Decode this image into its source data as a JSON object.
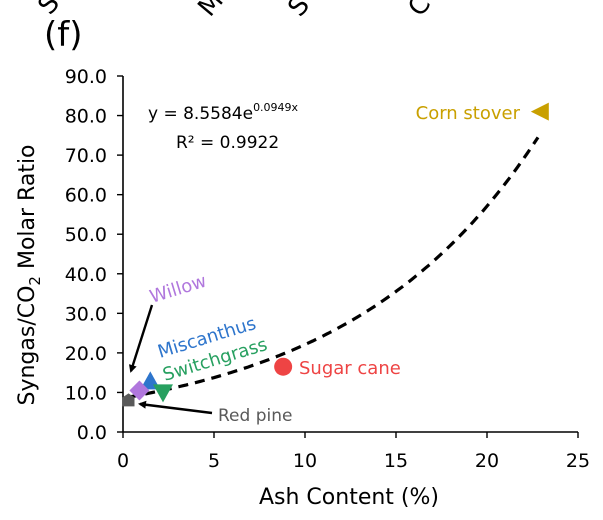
{
  "panel_label": "(f)",
  "top_cut_labels": [
    "S",
    "M",
    "S",
    "C"
  ],
  "equation": {
    "prefix": "y = 8.5584e",
    "exponent": "0.0949x",
    "r2": "R² = 0.9922"
  },
  "colors": {
    "curve": "#000000",
    "corn_stover": "#C9A000",
    "sugar_cane": "#EE4444",
    "miscanthus": "#2E75CC",
    "switchgrass": "#27A060",
    "willow": "#B077DD",
    "red_pine": "#595959"
  },
  "chart_data": {
    "type": "scatter",
    "xlabel": "Ash Content (%)",
    "ylabel": {
      "before": "Syngas/CO",
      "sub": "2",
      "after": " Molar Ratio"
    },
    "xlim": [
      0,
      25
    ],
    "ylim": [
      0,
      90
    ],
    "x_ticks": [
      "0",
      "5",
      "10",
      "15",
      "20",
      "25"
    ],
    "y_ticks": [
      "0.0",
      "10.0",
      "20.0",
      "30.0",
      "40.0",
      "50.0",
      "60.0",
      "70.0",
      "80.0",
      "90.0"
    ],
    "trendline": {
      "a": 8.5584,
      "b": 0.0949,
      "x_range": [
        0.3,
        22.8
      ],
      "style": "dashed"
    },
    "points": [
      {
        "name": "Corn stover",
        "x": 22.9,
        "y": 81.0,
        "marker": "triangle-left",
        "color_key": "corn_stover"
      },
      {
        "name": "Sugar cane",
        "x": 8.8,
        "y": 16.5,
        "marker": "circle",
        "color_key": "sugar_cane"
      },
      {
        "name": "Miscanthus",
        "x": 1.5,
        "y": 12.8,
        "marker": "triangle-up",
        "color_key": "miscanthus"
      },
      {
        "name": "Switchgrass",
        "x": 2.2,
        "y": 10.0,
        "marker": "triangle-down",
        "color_key": "switchgrass"
      },
      {
        "name": "Willow",
        "x": 0.9,
        "y": 10.5,
        "marker": "diamond",
        "color_key": "willow"
      },
      {
        "name": "Red pine",
        "x": 0.3,
        "y": 8.0,
        "marker": "pentagon",
        "color_key": "red_pine"
      }
    ]
  }
}
